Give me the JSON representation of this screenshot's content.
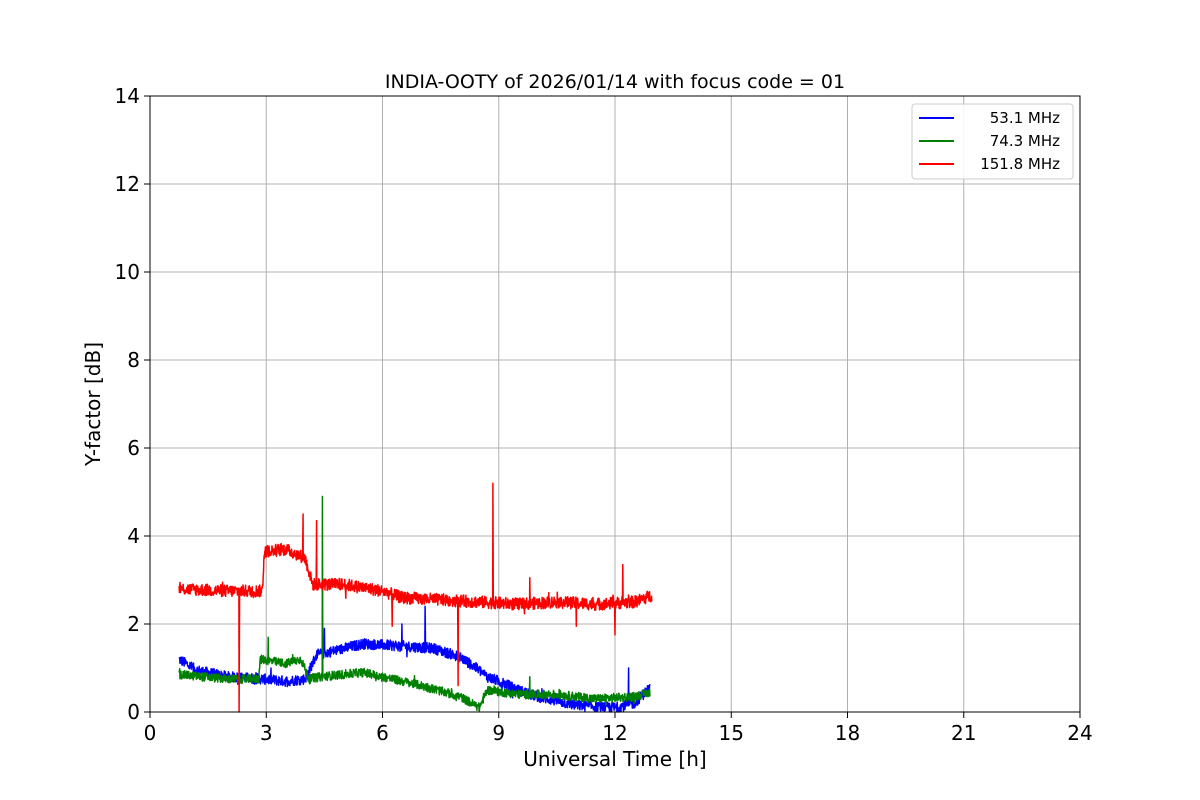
{
  "chart_data": {
    "type": "line",
    "title": "INDIA-OOTY of 2026/01/14 with focus code = 01",
    "xlabel": "Universal Time [h]",
    "ylabel": "Y-factor [dB]",
    "xlim": [
      0,
      24
    ],
    "ylim": [
      0,
      14
    ],
    "xticks": [
      0,
      3,
      6,
      9,
      12,
      15,
      18,
      21,
      24
    ],
    "yticks": [
      0,
      2,
      4,
      6,
      8,
      10,
      12,
      14
    ],
    "xtick_labels": [
      "0",
      "3",
      "6",
      "9",
      "12",
      "15",
      "18",
      "21",
      "24"
    ],
    "ytick_labels": [
      "0",
      "2",
      "4",
      "6",
      "8",
      "10",
      "12",
      "14"
    ],
    "grid": true,
    "legend_position": "top-right",
    "series": [
      {
        "name": "53.1 MHz",
        "color": "#0000ff",
        "noise": 0.12,
        "points": [
          [
            0.75,
            1.2
          ],
          [
            1.2,
            0.95
          ],
          [
            2.0,
            0.8
          ],
          [
            2.9,
            0.75
          ],
          [
            3.5,
            0.7
          ],
          [
            4.0,
            0.75
          ],
          [
            4.3,
            1.3
          ],
          [
            4.8,
            1.4
          ],
          [
            5.5,
            1.55
          ],
          [
            6.5,
            1.5
          ],
          [
            7.3,
            1.45
          ],
          [
            8.0,
            1.25
          ],
          [
            8.5,
            0.95
          ],
          [
            8.7,
            0.8
          ],
          [
            9.0,
            0.7
          ],
          [
            9.5,
            0.5
          ],
          [
            10.0,
            0.35
          ],
          [
            11.0,
            0.15
          ],
          [
            12.0,
            0.1
          ],
          [
            12.5,
            0.2
          ],
          [
            12.9,
            0.55
          ]
        ],
        "spikes": [
          [
            4.5,
            1.9
          ],
          [
            6.5,
            2.0
          ],
          [
            7.1,
            2.4
          ],
          [
            12.1,
            0.0
          ],
          [
            12.35,
            1.0
          ]
        ]
      },
      {
        "name": "74.3 MHz",
        "color": "#008000",
        "noise": 0.1,
        "points": [
          [
            0.75,
            0.85
          ],
          [
            2.0,
            0.75
          ],
          [
            2.8,
            0.75
          ],
          [
            2.85,
            1.2
          ],
          [
            3.5,
            1.1
          ],
          [
            3.9,
            1.2
          ],
          [
            4.1,
            0.75
          ],
          [
            4.4,
            0.8
          ],
          [
            5.5,
            0.9
          ],
          [
            6.0,
            0.8
          ],
          [
            7.0,
            0.6
          ],
          [
            8.0,
            0.35
          ],
          [
            8.5,
            0.1
          ],
          [
            8.7,
            0.5
          ],
          [
            9.5,
            0.4
          ],
          [
            10.5,
            0.4
          ],
          [
            11.5,
            0.3
          ],
          [
            12.5,
            0.35
          ],
          [
            12.9,
            0.45
          ]
        ],
        "spikes": [
          [
            3.05,
            1.7
          ],
          [
            4.45,
            4.9
          ],
          [
            9.8,
            0.8
          ]
        ]
      },
      {
        "name": "151.8 MHz",
        "color": "#ff0000",
        "noise": 0.14,
        "points": [
          [
            0.75,
            2.8
          ],
          [
            2.0,
            2.75
          ],
          [
            2.9,
            2.75
          ],
          [
            2.95,
            3.65
          ],
          [
            3.5,
            3.7
          ],
          [
            4.0,
            3.5
          ],
          [
            4.2,
            2.9
          ],
          [
            5.0,
            2.9
          ],
          [
            6.0,
            2.75
          ],
          [
            6.5,
            2.6
          ],
          [
            7.5,
            2.55
          ],
          [
            8.5,
            2.5
          ],
          [
            9.5,
            2.45
          ],
          [
            10.5,
            2.5
          ],
          [
            11.5,
            2.45
          ],
          [
            12.5,
            2.5
          ],
          [
            12.95,
            2.65
          ]
        ],
        "spikes": [
          [
            2.3,
            0.0
          ],
          [
            3.95,
            4.5
          ],
          [
            4.3,
            4.35
          ],
          [
            6.25,
            1.95
          ],
          [
            7.95,
            0.6
          ],
          [
            8.85,
            5.2
          ],
          [
            9.8,
            3.05
          ],
          [
            11.0,
            1.95
          ],
          [
            12.0,
            1.75
          ],
          [
            12.2,
            3.35
          ]
        ]
      }
    ]
  }
}
